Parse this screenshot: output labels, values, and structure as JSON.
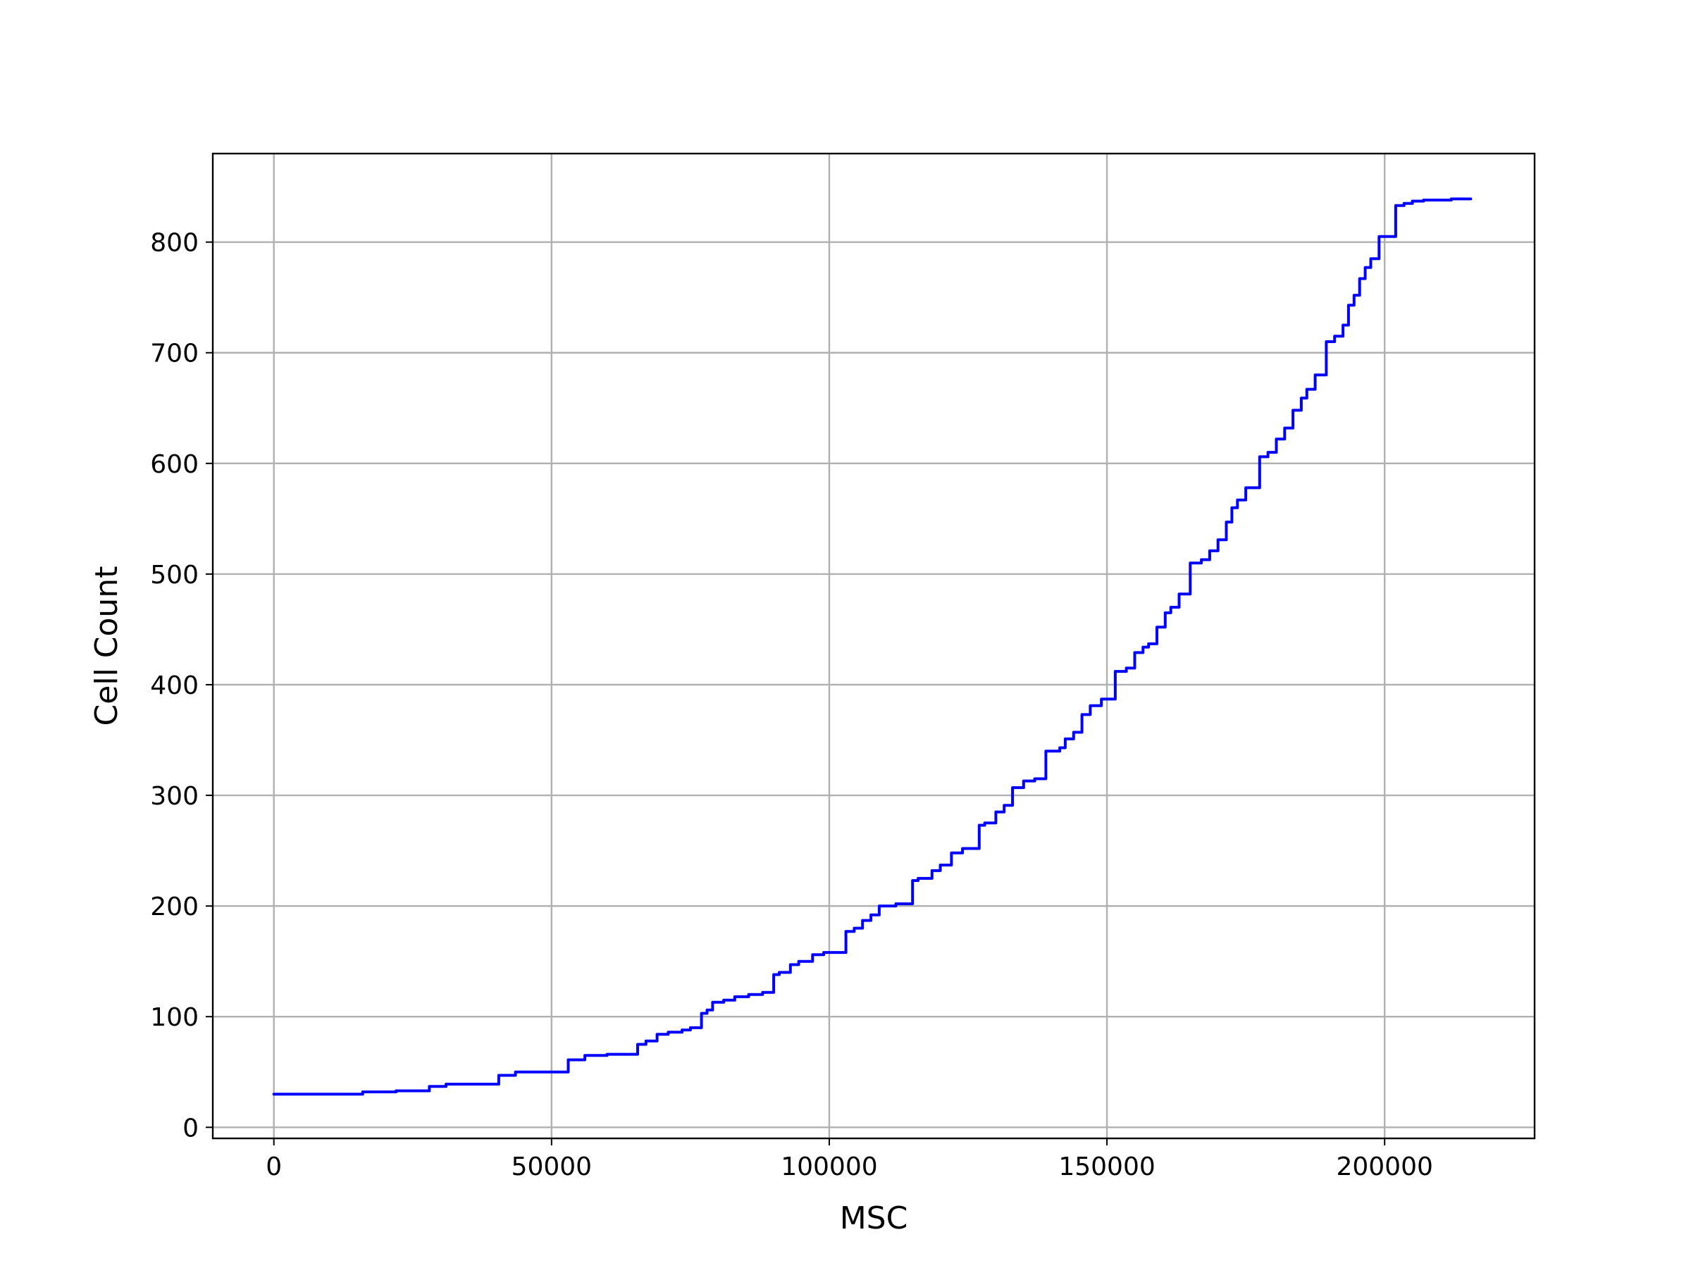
{
  "chart_data": {
    "type": "line",
    "xlabel": "MSC",
    "ylabel": "Cell Count",
    "xlim": [
      -11000,
      227000
    ],
    "ylim": [
      -10,
      880
    ],
    "xticks": [
      0,
      50000,
      100000,
      150000,
      200000
    ],
    "yticks": [
      0,
      100,
      200,
      300,
      400,
      500,
      600,
      700,
      800
    ],
    "grid": true,
    "step": true,
    "series": [
      {
        "color": "#0000ff",
        "x": [
          0,
          16000,
          22000,
          28000,
          31000,
          40500,
          43500,
          53000,
          56000,
          60000,
          65500,
          67000,
          69000,
          71000,
          73500,
          75000,
          77000,
          78000,
          79000,
          81000,
          83000,
          85500,
          88000,
          90000,
          91000,
          93000,
          94500,
          97000,
          99000,
          103000,
          104500,
          106000,
          107500,
          109000,
          112000,
          115000,
          116000,
          118500,
          120000,
          122000,
          124000,
          127000,
          128000,
          130000,
          131500,
          133000,
          135000,
          137000,
          139000,
          141500,
          142500,
          144000,
          145500,
          147000,
          149000,
          151500,
          153500,
          155000,
          156500,
          157500,
          159000,
          160500,
          161500,
          163000,
          165000,
          167000,
          168500,
          170000,
          171500,
          172500,
          173500,
          175000,
          177500,
          179000,
          180500,
          182000,
          183500,
          185000,
          186000,
          187500,
          189500,
          191000,
          192500,
          193500,
          194500,
          195500,
          196500,
          197500,
          199000,
          202000,
          203500,
          205000,
          207000,
          212000,
          215500
        ],
        "y": [
          30,
          32,
          33,
          37,
          39,
          47,
          50,
          61,
          65,
          66,
          75,
          78,
          84,
          86,
          88,
          90,
          103,
          106,
          113,
          115,
          118,
          120,
          122,
          138,
          140,
          147,
          150,
          156,
          158,
          177,
          180,
          187,
          192,
          200,
          202,
          223,
          225,
          232,
          237,
          248,
          252,
          273,
          275,
          285,
          291,
          307,
          313,
          315,
          340,
          343,
          351,
          357,
          373,
          381,
          387,
          412,
          415,
          429,
          434,
          437,
          452,
          465,
          470,
          482,
          510,
          513,
          521,
          531,
          547,
          560,
          567,
          578,
          606,
          610,
          622,
          632,
          648,
          659,
          667,
          680,
          710,
          715,
          725,
          743,
          752,
          767,
          777,
          785,
          805,
          833,
          835,
          837,
          838,
          839,
          839
        ]
      }
    ]
  }
}
